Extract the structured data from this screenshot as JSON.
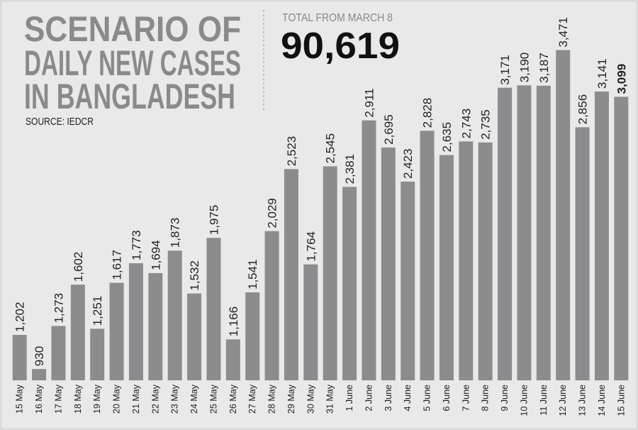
{
  "chart_data": {
    "type": "bar",
    "title": [
      "SCENARIO OF",
      "DAILY NEW CASES",
      "IN BANGLADESH"
    ],
    "source": "SOURCE: IEDCR",
    "total_label": "TOTAL FROM MARCH 8",
    "total": "90,619",
    "categories": [
      "15 May",
      "16 May",
      "17 May",
      "18 May",
      "19 May",
      "20 May",
      "21 May",
      "22 May",
      "23 May",
      "24 May",
      "25 May",
      "26 May",
      "27 May",
      "28 May",
      "29 May",
      "30 May",
      "31 May",
      "1 June",
      "2 June",
      "3 June",
      "4 June",
      "5 June",
      "6 June",
      "7 June",
      "8 June",
      "9 June",
      "10 June",
      "11 June",
      "12 June",
      "13 June",
      "14 June",
      "15 June"
    ],
    "values": [
      1202,
      930,
      1273,
      1602,
      1251,
      1617,
      1773,
      1694,
      1873,
      1532,
      1975,
      1166,
      1541,
      2029,
      2523,
      1764,
      2545,
      2381,
      2911,
      2695,
      2423,
      2828,
      2635,
      2743,
      2735,
      3171,
      3190,
      3187,
      3471,
      2856,
      3141,
      3099
    ],
    "value_labels": [
      "1,202",
      "930",
      "1,273",
      "1,602",
      "1,251",
      "1,617",
      "1,773",
      "1,694",
      "1,873",
      "1,532",
      "1,975",
      "1,166",
      "1,541",
      "2,029",
      "2,523",
      "1,764",
      "2,545",
      "2,381",
      "2,911",
      "2,695",
      "2,423",
      "2,828",
      "2,635",
      "2,743",
      "2,735",
      "3,171",
      "3,190",
      "3,187",
      "3,471",
      "2,856",
      "3,141",
      "3,099"
    ],
    "color": "#8c8c8e",
    "ylim": [
      840,
      3870
    ],
    "bold_last_label": true
  }
}
